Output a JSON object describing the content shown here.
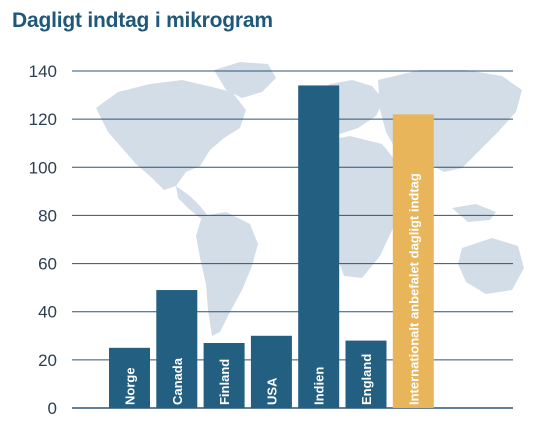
{
  "chart_data": {
    "type": "bar",
    "title": "Dagligt indtag i mikrogram",
    "categories": [
      "Norge",
      "Canada",
      "Finland",
      "USA",
      "Indien",
      "England",
      "Internationalt anbefalet dagligt indtag"
    ],
    "values": [
      25,
      49,
      27,
      30,
      134,
      28,
      122
    ],
    "highlight_category": "Internationalt anbefalet dagligt indtag",
    "ylim": [
      0,
      140
    ],
    "yticks": [
      0,
      20,
      40,
      60,
      80,
      100,
      120,
      140
    ],
    "grid": true,
    "legend": "none",
    "background": "world map silhouette"
  },
  "colors": {
    "title": "#1f5878",
    "bar": "#235f80",
    "highlight_bar": "#e8b55b",
    "grid": "#2c5573",
    "map": "#d3dde8",
    "tick_text": "#2a3f52",
    "bar_text": "#ffffff"
  }
}
